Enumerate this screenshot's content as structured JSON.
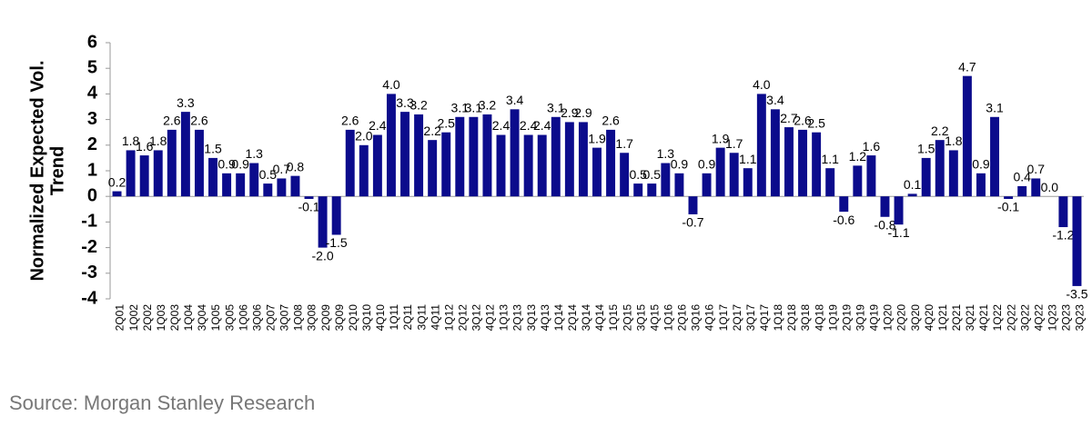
{
  "chart_data": {
    "type": "bar",
    "ylabel": [
      "Normalized Expected Vol.",
      "Trend"
    ],
    "source": "Source: Morgan Stanley Research",
    "color": "#0b0b8c",
    "categories": [
      "2Q01",
      "1Q02",
      "2Q02",
      "1Q03",
      "2Q03",
      "1Q04",
      "3Q04",
      "1Q05",
      "3Q05",
      "1Q06",
      "3Q06",
      "2Q07",
      "3Q07",
      "1Q08",
      "3Q08",
      "2Q09",
      "3Q09",
      "2Q10",
      "3Q10",
      "4Q10",
      "1Q11",
      "2Q11",
      "3Q11",
      "4Q11",
      "1Q12",
      "2Q12",
      "3Q12",
      "4Q12",
      "1Q13",
      "2Q13",
      "3Q13",
      "4Q13",
      "1Q14",
      "2Q14",
      "3Q14",
      "4Q14",
      "1Q15",
      "2Q15",
      "3Q15",
      "4Q15",
      "1Q16",
      "2Q16",
      "3Q16",
      "4Q16",
      "1Q17",
      "2Q17",
      "3Q17",
      "4Q17",
      "1Q18",
      "2Q18",
      "3Q18",
      "4Q18",
      "1Q19",
      "2Q19",
      "3Q19",
      "4Q19",
      "1Q20",
      "2Q20",
      "3Q20",
      "4Q20",
      "1Q21",
      "2Q21",
      "3Q21",
      "4Q21",
      "1Q22",
      "2Q22",
      "3Q22",
      "4Q22",
      "1Q23",
      "2Q23",
      "3Q23"
    ],
    "values": [
      0.2,
      1.8,
      1.6,
      1.8,
      2.6,
      3.3,
      2.6,
      1.5,
      0.9,
      0.9,
      1.3,
      0.5,
      0.7,
      0.8,
      -0.1,
      -2.0,
      -1.5,
      2.6,
      2.0,
      2.4,
      4.0,
      3.3,
      3.2,
      2.2,
      2.5,
      3.1,
      3.1,
      3.2,
      2.4,
      3.4,
      2.4,
      2.4,
      3.1,
      2.9,
      2.9,
      1.9,
      2.6,
      1.7,
      0.5,
      0.5,
      1.3,
      0.9,
      -0.7,
      0.9,
      1.9,
      1.7,
      1.1,
      4.0,
      3.4,
      2.7,
      2.6,
      2.5,
      1.1,
      -0.6,
      1.2,
      1.6,
      -0.8,
      -1.1,
      0.1,
      1.5,
      2.2,
      1.8,
      4.7,
      0.9,
      3.1,
      -0.1,
      0.4,
      0.7,
      0.0,
      -1.2,
      -3.5
    ],
    "value_labels": [
      "0.2",
      "1.8",
      "1.6",
      "1.8",
      "2.6",
      "3.3",
      "2.6",
      "1.5",
      "0.9",
      "0.9",
      "1.3",
      "0.5",
      "0.7",
      "0.8",
      "-0.1",
      "-2.0",
      "-1.5",
      "2.6",
      "2.0",
      "2.4",
      "4.0",
      "3.3",
      "3.2",
      "2.2",
      "2.5",
      "3.1",
      "3.1",
      "3.2",
      "2.4",
      "3.4",
      "2.4",
      "2.4",
      "3.1",
      "2.9",
      "2.9",
      "1.9",
      "2.6",
      "1.7",
      "0.5",
      "0.5",
      "1.3",
      "0.9",
      "-0.7",
      "0.9",
      "1.9",
      "1.7",
      "1.1",
      "4.0",
      "3.4",
      "2.7",
      "2.6",
      "2.5",
      "1.1",
      "-0.6",
      "1.2",
      "1.6",
      "-0.8",
      "-1.1",
      "0.1",
      "1.5",
      "2.2",
      "1.8",
      "4.7",
      "0.9",
      "3.1",
      "-0.1",
      "0.4",
      "0.7",
      "0.0",
      "-1.2",
      "-3.5"
    ],
    "ylim": [
      -4,
      6
    ],
    "yticks": [
      -4,
      -3,
      -2,
      -1,
      0,
      1,
      2,
      3,
      4,
      5,
      6
    ]
  }
}
